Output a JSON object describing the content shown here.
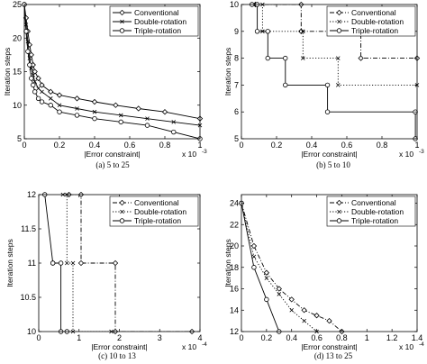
{
  "chart_data": [
    {
      "type": "line",
      "caption": "(a) 5 to 25",
      "xlabel": "|Error constraint|",
      "ylabel": "Iteration steps",
      "x_multiplier": "x 10",
      "x_multiplier_exp": "-3",
      "xlim": [
        0,
        0.001
      ],
      "ylim": [
        5,
        25
      ],
      "xtick_labels": [
        "0",
        "0.2",
        "0.4",
        "0.6",
        "0.8",
        "1"
      ],
      "xtick_values": [
        0,
        0.0002,
        0.0004,
        0.0006,
        0.0008,
        0.001
      ],
      "ytick_labels": [
        "5",
        "10",
        "15",
        "20",
        "25"
      ],
      "ytick_values": [
        5,
        10,
        15,
        20,
        25
      ],
      "grid": false,
      "legend_position": "top-right",
      "series": [
        {
          "name": "Conventional",
          "marker": "diamond",
          "dash": "solid",
          "x": [
            0,
            1e-05,
            2e-05,
            3e-05,
            4e-05,
            5e-05,
            6e-05,
            8e-05,
            0.0001,
            0.00015,
            0.0002,
            0.0003,
            0.0004,
            0.00052,
            0.00065,
            0.0008,
            0.001
          ],
          "y": [
            25,
            23,
            21,
            19,
            17.5,
            16,
            15,
            14,
            13,
            12,
            11.5,
            11,
            10.5,
            10,
            9.5,
            9,
            8
          ]
        },
        {
          "name": "Double-rotation",
          "marker": "x",
          "dash": "solid",
          "x": [
            0,
            1e-05,
            2e-05,
            3e-05,
            4e-05,
            5e-05,
            6e-05,
            8e-05,
            0.0001,
            0.00015,
            0.0002,
            0.0003,
            0.0004,
            0.00055,
            0.0007,
            0.00085,
            0.001
          ],
          "y": [
            25,
            22,
            19.5,
            17,
            15.5,
            14.5,
            13.5,
            12.5,
            12,
            11,
            10,
            9.5,
            9,
            8.5,
            8,
            7.5,
            7
          ]
        },
        {
          "name": "Triple-rotation",
          "marker": "circle",
          "dash": "solid",
          "x": [
            0,
            1e-05,
            2e-05,
            3e-05,
            4e-05,
            5e-05,
            6e-05,
            8e-05,
            0.0001,
            0.00015,
            0.0002,
            0.0003,
            0.0004,
            0.00055,
            0.0007,
            0.00085,
            0.001
          ],
          "y": [
            25,
            21,
            18,
            16,
            14,
            13,
            12,
            11,
            10.5,
            10,
            9,
            8.5,
            8,
            7.5,
            7,
            6,
            5
          ]
        }
      ]
    },
    {
      "type": "line",
      "caption": "(b) 5 to 10",
      "xlabel": "|Error constraint|",
      "ylabel": "Iteration steps",
      "x_multiplier": "x 10",
      "x_multiplier_exp": "-3",
      "xlim": [
        0,
        0.001
      ],
      "ylim": [
        5,
        10
      ],
      "xtick_labels": [
        "0",
        "0.2",
        "0.4",
        "0.6",
        "0.8",
        "1"
      ],
      "xtick_values": [
        0,
        0.0002,
        0.0004,
        0.0006,
        0.0008,
        0.001
      ],
      "ytick_labels": [
        "5",
        "6",
        "7",
        "8",
        "9",
        "10"
      ],
      "ytick_values": [
        5,
        6,
        7,
        8,
        9,
        10
      ],
      "grid": false,
      "legend_position": "top-right",
      "series": [
        {
          "name": "Conventional",
          "marker": "diamond",
          "dash": "dashdot",
          "x": [
            8e-05,
            0.00034,
            0.00034,
            0.00068,
            0.00068,
            0.001
          ],
          "y": [
            10,
            10,
            9,
            9,
            8,
            8
          ]
        },
        {
          "name": "Double-rotation",
          "marker": "x",
          "dash": "dotted",
          "x": [
            7e-05,
            0.00012,
            0.00012,
            0.00035,
            0.00035,
            0.00055,
            0.00055,
            0.001
          ],
          "y": [
            10,
            10,
            9,
            9,
            8,
            8,
            7,
            7
          ]
        },
        {
          "name": "Triple-rotation",
          "marker": "circle",
          "dash": "solid",
          "x": [
            6e-05,
            9e-05,
            9e-05,
            0.00015,
            0.00015,
            0.00025,
            0.00025,
            0.00049,
            0.00049,
            0.00099,
            0.00099
          ],
          "y": [
            10,
            10,
            9,
            9,
            8,
            8,
            7,
            7,
            6,
            6,
            5
          ]
        }
      ]
    },
    {
      "type": "line",
      "caption": "(c) 10 to 13",
      "xlabel": "|Error constraint|",
      "ylabel": "Iteration steps",
      "x_multiplier": "x 10",
      "x_multiplier_exp": "-4",
      "xlim": [
        0,
        0.0004
      ],
      "ylim": [
        10,
        12
      ],
      "xtick_labels": [
        "0",
        "1",
        "2",
        "3",
        "4"
      ],
      "xtick_values": [
        0,
        0.0001,
        0.0002,
        0.0003,
        0.0004
      ],
      "ytick_labels": [
        "10",
        "10.5",
        "11",
        "11.5",
        "12"
      ],
      "ytick_values": [
        10,
        10.5,
        11,
        11.5,
        12
      ],
      "grid": false,
      "legend_position": "top-right",
      "series": [
        {
          "name": "Conventional",
          "marker": "diamond",
          "dash": "dashdot",
          "x": [
            7.5e-05,
            0.000105,
            0.000105,
            0.00019,
            0.00019,
            0.00038
          ],
          "y": [
            12,
            12,
            11,
            11,
            10,
            10
          ]
        },
        {
          "name": "Double-rotation",
          "marker": "x",
          "dash": "dotted",
          "x": [
            6e-05,
            7e-05,
            7e-05,
            8.5e-05,
            8.5e-05,
            0.00018
          ],
          "y": [
            12,
            12,
            11,
            11,
            10,
            10
          ]
        },
        {
          "name": "Triple-rotation",
          "marker": "circle",
          "dash": "solid",
          "x": [
            1.5e-05,
            3.5e-05,
            3.5e-05,
            5.5e-05,
            5.5e-05,
            7e-05
          ],
          "y": [
            12,
            11,
            11,
            11,
            10,
            10
          ]
        }
      ]
    },
    {
      "type": "line",
      "caption": "(d) 13 to 25",
      "xlabel": "|Error constraint|",
      "ylabel": "Iteration steps",
      "x_multiplier": "x 10",
      "x_multiplier_exp": "-4",
      "xlim": [
        0,
        0.00014
      ],
      "ylim": [
        12,
        24.8
      ],
      "xtick_labels": [
        "0",
        "0.2",
        "0.4",
        "0.6",
        "0.8",
        "1",
        "1.2",
        "1.4"
      ],
      "xtick_values": [
        0,
        2e-05,
        4e-05,
        6e-05,
        8e-05,
        0.0001,
        0.00012,
        0.00014
      ],
      "ytick_labels": [
        "12",
        "14",
        "16",
        "18",
        "20",
        "22",
        "24"
      ],
      "ytick_values": [
        12,
        14,
        16,
        18,
        20,
        22,
        24
      ],
      "grid": false,
      "legend_position": "top-right",
      "series": [
        {
          "name": "Conventional",
          "marker": "diamond",
          "dash": "dashdot",
          "x": [
            0,
            1e-05,
            2e-05,
            3e-05,
            4e-05,
            5e-05,
            6e-05,
            7e-05,
            8e-05
          ],
          "y": [
            24,
            20,
            17.5,
            16,
            15,
            14,
            13.5,
            13,
            12
          ]
        },
        {
          "name": "Double-rotation",
          "marker": "x",
          "dash": "dotted",
          "x": [
            0,
            1e-05,
            2e-05,
            3e-05,
            4e-05,
            5e-05,
            6e-05
          ],
          "y": [
            24,
            19,
            17,
            15.5,
            14,
            13,
            12
          ]
        },
        {
          "name": "Triple-rotation",
          "marker": "circle",
          "dash": "solid",
          "x": [
            0,
            1e-05,
            2e-05,
            3e-05
          ],
          "y": [
            24,
            18,
            15,
            12
          ]
        }
      ]
    }
  ]
}
